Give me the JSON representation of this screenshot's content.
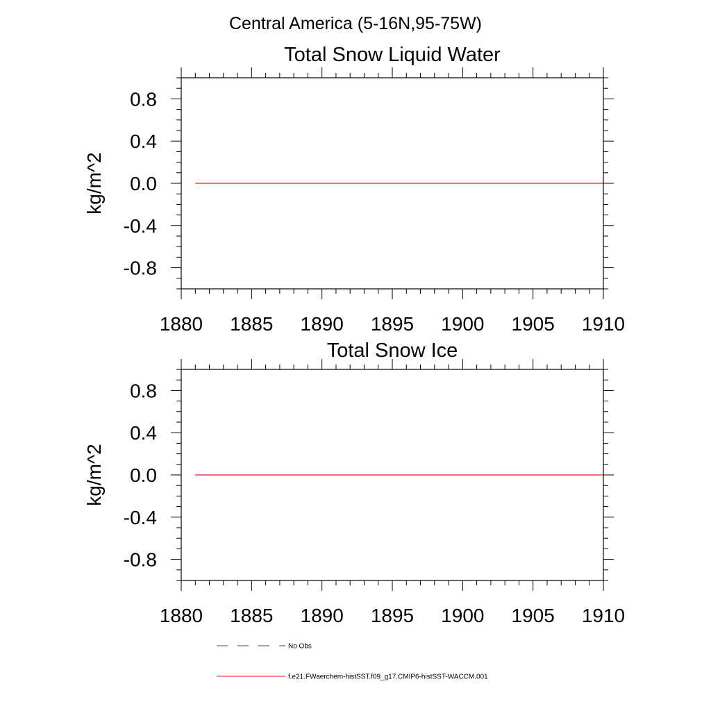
{
  "figure": {
    "supertitle": "Central America (5-16N,95-75W)"
  },
  "chart_data": [
    {
      "type": "line",
      "title": "Total Snow Liquid Water",
      "xlabel": "",
      "ylabel": "kg/m^2",
      "xlim": [
        1880,
        1910
      ],
      "ylim": [
        -1.0,
        1.0
      ],
      "xticks": [
        1880,
        1885,
        1890,
        1895,
        1900,
        1905,
        1910
      ],
      "xtick_labels": [
        "1880",
        "1885",
        "1890",
        "1895",
        "1900",
        "1905",
        "1910"
      ],
      "yticks": [
        -0.8,
        -0.4,
        0.0,
        0.4,
        0.8
      ],
      "ytick_labels": [
        "-0.8",
        "-0.4",
        "0.0",
        "0.4",
        "0.8"
      ],
      "grid": false,
      "series": [
        {
          "name": "f.e21.FWaerchem-histSST.f09_g17.CMIP6-histSST-WACCM.001",
          "color": "#e8191c",
          "x": [
            1881,
            1910
          ],
          "y": [
            0.0,
            0.0
          ]
        }
      ]
    },
    {
      "type": "line",
      "title": "Total Snow Ice",
      "xlabel": "",
      "ylabel": "kg/m^2",
      "xlim": [
        1880,
        1910
      ],
      "ylim": [
        -1.0,
        1.0
      ],
      "xticks": [
        1880,
        1885,
        1890,
        1895,
        1900,
        1905,
        1910
      ],
      "xtick_labels": [
        "1880",
        "1885",
        "1890",
        "1895",
        "1900",
        "1905",
        "1910"
      ],
      "yticks": [
        -0.8,
        -0.4,
        0.0,
        0.4,
        0.8
      ],
      "ytick_labels": [
        "-0.8",
        "-0.4",
        "0.0",
        "0.4",
        "0.8"
      ],
      "grid": false,
      "series": [
        {
          "name": "f.e21.FWaerchem-histSST.f09_g17.CMIP6-histSST-WACCM.001",
          "color": "#e8191c",
          "x": [
            1881,
            1910
          ],
          "y": [
            0.0,
            0.0
          ]
        }
      ]
    }
  ],
  "legend": {
    "placement": "bottom",
    "items": [
      {
        "label": "No Obs",
        "color": "#3b3b7a",
        "style": "dashed"
      },
      {
        "label": "f.e21.FWaerchem-histSST.f09_g17.CMIP6-histSST-WACCM.001",
        "color": "#e8191c",
        "style": "solid"
      }
    ]
  }
}
